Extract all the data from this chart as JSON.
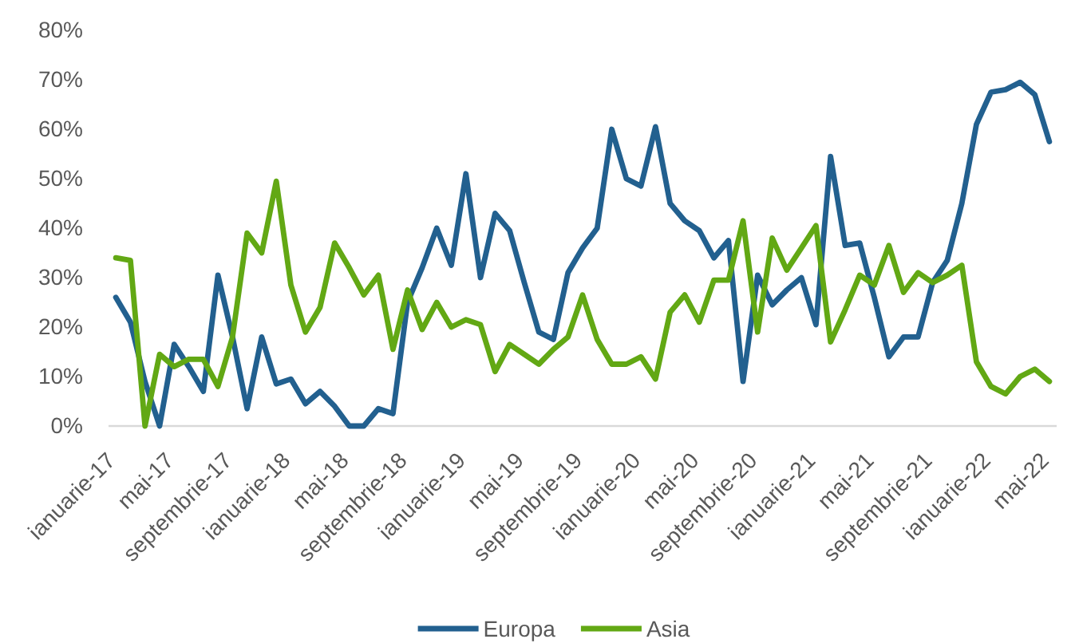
{
  "chart_data": {
    "type": "line",
    "categories": [
      "ianuarie-17",
      null,
      null,
      null,
      "mai-17",
      null,
      null,
      null,
      "septembrie-17",
      null,
      null,
      null,
      "ianuarie-18",
      null,
      null,
      null,
      "mai-18",
      null,
      null,
      null,
      "septembrie-18",
      null,
      null,
      null,
      "ianuarie-19",
      null,
      null,
      null,
      "mai-19",
      null,
      null,
      null,
      "septembrie-19",
      null,
      null,
      null,
      "ianuarie-20",
      null,
      null,
      null,
      "mai-20",
      null,
      null,
      null,
      "septembrie-20",
      null,
      null,
      null,
      "ianuarie-21",
      null,
      null,
      null,
      "mai-21",
      null,
      null,
      null,
      "septembrie-21",
      null,
      null,
      null,
      "ianuarie-22",
      null,
      null,
      null,
      "mai-22"
    ],
    "series": [
      {
        "name": "Europa",
        "color": "#22608f",
        "values": [
          26,
          21,
          9,
          0,
          16.5,
          12,
          7,
          30.5,
          18,
          3.5,
          18,
          8.5,
          9.5,
          4.5,
          7,
          4,
          0,
          0,
          3.5,
          2.5,
          25,
          32,
          40,
          32.5,
          51,
          30,
          43,
          39.5,
          29,
          19,
          17.5,
          31,
          36,
          40,
          60,
          50,
          48.5,
          60.5,
          45,
          41.5,
          39.5,
          34,
          37.5,
          9,
          30.5,
          24.5,
          27.5,
          30,
          20.5,
          54.5,
          36.5,
          37,
          26,
          14,
          18,
          18,
          29,
          33.5,
          45,
          61,
          67.5,
          68,
          69.5,
          67,
          57.5
        ]
      },
      {
        "name": "Asia",
        "color": "#62a814",
        "values": [
          34,
          33.5,
          0,
          14.5,
          12,
          13.5,
          13.5,
          8,
          18,
          39,
          35,
          49.5,
          28.5,
          19,
          24,
          37,
          32,
          26.5,
          30.5,
          15.5,
          27.5,
          19.5,
          25,
          20,
          21.5,
          20.5,
          11,
          16.5,
          14.5,
          12.5,
          15.5,
          18,
          26.5,
          17.5,
          12.5,
          12.5,
          14,
          9.5,
          23,
          26.5,
          21,
          29.5,
          29.5,
          41.5,
          19,
          38,
          31.5,
          36,
          40.5,
          17,
          23.5,
          30.5,
          28.5,
          36.5,
          27,
          31,
          29,
          30.5,
          32.5,
          13,
          8,
          6.5,
          10,
          11.5,
          9
        ]
      }
    ],
    "ylim": [
      0,
      80
    ],
    "yticks": [
      {
        "value": 0,
        "label": "0%"
      },
      {
        "value": 10,
        "label": "10%"
      },
      {
        "value": 20,
        "label": "20%"
      },
      {
        "value": 30,
        "label": "30%"
      },
      {
        "value": 40,
        "label": "40%"
      },
      {
        "value": 50,
        "label": "50%"
      },
      {
        "value": 60,
        "label": "60%"
      },
      {
        "value": 70,
        "label": "70%"
      },
      {
        "value": 80,
        "label": "80%"
      }
    ],
    "grid": false,
    "legend": "bottom"
  }
}
